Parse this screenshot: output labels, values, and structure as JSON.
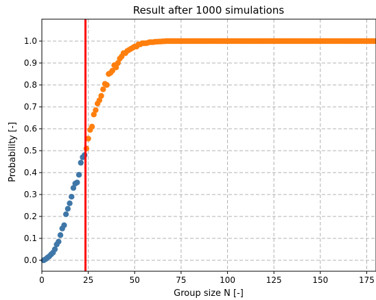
{
  "chart_data": {
    "type": "scatter",
    "title": "Result after 1000 simulations",
    "xlabel": "Group size N [-]",
    "ylabel": "Probability [-]",
    "xlim": [
      0,
      180
    ],
    "ylim": [
      -0.05,
      1.1
    ],
    "xticks": [
      0,
      25,
      50,
      75,
      100,
      125,
      150,
      175
    ],
    "yticks": [
      0.0,
      0.1,
      0.2,
      0.3,
      0.4,
      0.5,
      0.6,
      0.7,
      0.8,
      0.9,
      1.0
    ],
    "grid": true,
    "grid_style": "dashed",
    "threshold_x": 23.5,
    "colors": {
      "below": "#3f77a8",
      "above": "#ff7f0e",
      "threshold": "#ff0000",
      "grid": "#b0b0b0"
    },
    "series": [
      {
        "values": [
          [
            1,
            0.0
          ],
          [
            2,
            0.005
          ],
          [
            3,
            0.012
          ],
          [
            4,
            0.018
          ],
          [
            5,
            0.027
          ],
          [
            6,
            0.035
          ],
          [
            7,
            0.05
          ],
          [
            8,
            0.072
          ],
          [
            9,
            0.085
          ],
          [
            10,
            0.115
          ],
          [
            11,
            0.145
          ],
          [
            12,
            0.16
          ],
          [
            13,
            0.21
          ],
          [
            14,
            0.235
          ],
          [
            15,
            0.26
          ],
          [
            16,
            0.29
          ],
          [
            17,
            0.33
          ],
          [
            18,
            0.35
          ],
          [
            19,
            0.355
          ],
          [
            20,
            0.39
          ],
          [
            21,
            0.445
          ],
          [
            22,
            0.47
          ],
          [
            23,
            0.48
          ]
        ]
      },
      {
        "values": [
          [
            24,
            0.51
          ],
          [
            25,
            0.555
          ],
          [
            26,
            0.595
          ],
          [
            27,
            0.61
          ],
          [
            28,
            0.665
          ],
          [
            29,
            0.685
          ],
          [
            30,
            0.715
          ],
          [
            31,
            0.73
          ],
          [
            32,
            0.75
          ],
          [
            33,
            0.78
          ],
          [
            34,
            0.805
          ],
          [
            35,
            0.8
          ],
          [
            36,
            0.85
          ],
          [
            37,
            0.855
          ],
          [
            38,
            0.865
          ],
          [
            39,
            0.89
          ],
          [
            40,
            0.88
          ],
          [
            41,
            0.9
          ],
          [
            42,
            0.92
          ],
          [
            43,
            0.93
          ],
          [
            44,
            0.945
          ],
          [
            45,
            0.945
          ],
          [
            46,
            0.955
          ],
          [
            47,
            0.96
          ],
          [
            48,
            0.965
          ],
          [
            49,
            0.97
          ],
          [
            50,
            0.975
          ],
          [
            51,
            0.975
          ],
          [
            52,
            0.985
          ],
          [
            53,
            0.985
          ],
          [
            54,
            0.99
          ],
          [
            55,
            0.99
          ],
          [
            56,
            0.99
          ],
          [
            57,
            0.992
          ],
          [
            58,
            0.995
          ],
          [
            59,
            0.995
          ],
          [
            60,
            0.995
          ],
          [
            61,
            0.997
          ],
          [
            62,
            0.997
          ],
          [
            63,
            0.998
          ],
          [
            64,
            0.998
          ],
          [
            65,
            0.999
          ],
          [
            66,
            0.999
          ],
          [
            67,
            1.0
          ],
          [
            68,
            1.0
          ],
          [
            69,
            1.0
          ],
          [
            70,
            1.0
          ],
          [
            71,
            1.0
          ],
          [
            72,
            1.0
          ],
          [
            73,
            1.0
          ],
          [
            74,
            1.0
          ],
          [
            75,
            1.0
          ],
          [
            76,
            1.0
          ],
          [
            77,
            1.0
          ],
          [
            78,
            1.0
          ],
          [
            79,
            1.0
          ],
          [
            80,
            1.0
          ],
          [
            81,
            1.0
          ],
          [
            82,
            1.0
          ],
          [
            83,
            1.0
          ],
          [
            84,
            1.0
          ],
          [
            85,
            1.0
          ],
          [
            86,
            1.0
          ],
          [
            87,
            1.0
          ],
          [
            88,
            1.0
          ],
          [
            89,
            1.0
          ],
          [
            90,
            1.0
          ],
          [
            91,
            1.0
          ],
          [
            92,
            1.0
          ],
          [
            93,
            1.0
          ],
          [
            94,
            1.0
          ],
          [
            95,
            1.0
          ],
          [
            96,
            1.0
          ],
          [
            97,
            1.0
          ],
          [
            98,
            1.0
          ],
          [
            99,
            1.0
          ],
          [
            100,
            1.0
          ],
          [
            101,
            1.0
          ],
          [
            102,
            1.0
          ],
          [
            103,
            1.0
          ],
          [
            104,
            1.0
          ],
          [
            105,
            1.0
          ],
          [
            106,
            1.0
          ],
          [
            107,
            1.0
          ],
          [
            108,
            1.0
          ],
          [
            109,
            1.0
          ],
          [
            110,
            1.0
          ],
          [
            111,
            1.0
          ],
          [
            112,
            1.0
          ],
          [
            113,
            1.0
          ],
          [
            114,
            1.0
          ],
          [
            115,
            1.0
          ],
          [
            116,
            1.0
          ],
          [
            117,
            1.0
          ],
          [
            118,
            1.0
          ],
          [
            119,
            1.0
          ],
          [
            120,
            1.0
          ],
          [
            121,
            1.0
          ],
          [
            122,
            1.0
          ],
          [
            123,
            1.0
          ],
          [
            124,
            1.0
          ],
          [
            125,
            1.0
          ],
          [
            126,
            1.0
          ],
          [
            127,
            1.0
          ],
          [
            128,
            1.0
          ],
          [
            129,
            1.0
          ],
          [
            130,
            1.0
          ],
          [
            131,
            1.0
          ],
          [
            132,
            1.0
          ],
          [
            133,
            1.0
          ],
          [
            134,
            1.0
          ],
          [
            135,
            1.0
          ],
          [
            136,
            1.0
          ],
          [
            137,
            1.0
          ],
          [
            138,
            1.0
          ],
          [
            139,
            1.0
          ],
          [
            140,
            1.0
          ],
          [
            141,
            1.0
          ],
          [
            142,
            1.0
          ],
          [
            143,
            1.0
          ],
          [
            144,
            1.0
          ],
          [
            145,
            1.0
          ],
          [
            146,
            1.0
          ],
          [
            147,
            1.0
          ],
          [
            148,
            1.0
          ],
          [
            149,
            1.0
          ],
          [
            150,
            1.0
          ],
          [
            151,
            1.0
          ],
          [
            152,
            1.0
          ],
          [
            153,
            1.0
          ],
          [
            154,
            1.0
          ],
          [
            155,
            1.0
          ],
          [
            156,
            1.0
          ],
          [
            157,
            1.0
          ],
          [
            158,
            1.0
          ],
          [
            159,
            1.0
          ],
          [
            160,
            1.0
          ],
          [
            161,
            1.0
          ],
          [
            162,
            1.0
          ],
          [
            163,
            1.0
          ],
          [
            164,
            1.0
          ],
          [
            165,
            1.0
          ],
          [
            166,
            1.0
          ],
          [
            167,
            1.0
          ],
          [
            168,
            1.0
          ],
          [
            169,
            1.0
          ],
          [
            170,
            1.0
          ],
          [
            171,
            1.0
          ],
          [
            172,
            1.0
          ],
          [
            173,
            1.0
          ],
          [
            174,
            1.0
          ],
          [
            175,
            1.0
          ],
          [
            176,
            1.0
          ],
          [
            177,
            1.0
          ],
          [
            178,
            1.0
          ],
          [
            179,
            1.0
          ],
          [
            180,
            1.0
          ]
        ]
      }
    ]
  }
}
